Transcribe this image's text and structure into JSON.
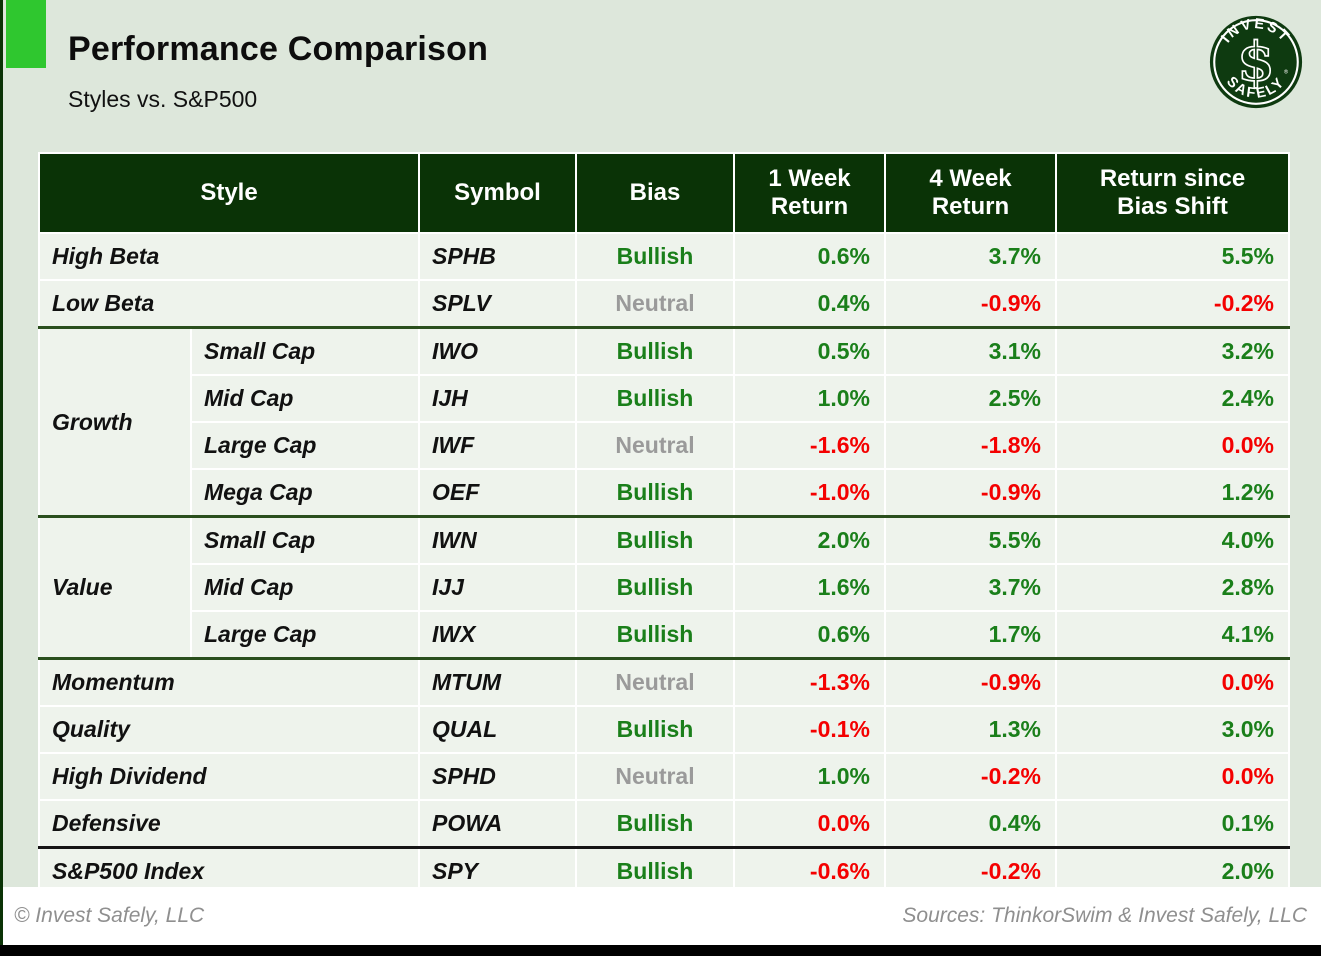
{
  "page": {
    "title": "Performance Comparison",
    "subtitle": "Styles vs. S&P500"
  },
  "logo": {
    "top_text": "INVEST",
    "bottom_text": "SAFELY",
    "monogram": "$",
    "trademark": "®"
  },
  "colors": {
    "page_bg": "#dde7db",
    "accent_green": "#2fc72f",
    "header_green": "#0a3306",
    "row_bg": "#eef3ec",
    "bullish_green": "#1a7f1a",
    "negative_red": "#f40000",
    "neutral_gray": "#9a9a9a",
    "group_divider_green": "#2a4f1d",
    "index_divider_black": "#151515",
    "footer_bg": "#ffffff",
    "footer_text": "#8f8f8f",
    "logo_green": "#0e3a10"
  },
  "table": {
    "header": {
      "style": "Style",
      "symbol": "Symbol",
      "bias": "Bias",
      "week1": "1 Week Return",
      "week4": "4 Week Return",
      "since": "Return since Bias Shift"
    },
    "rows": [
      {
        "style": "High Beta",
        "symbol": "SPHB",
        "bias": {
          "label": "Bullish",
          "tone": "bullish"
        },
        "returns": [
          {
            "value": "0.6%",
            "tone": "pos"
          },
          {
            "value": "3.7%",
            "tone": "pos"
          },
          {
            "value": "5.5%",
            "tone": "pos"
          }
        ],
        "divider_after": null
      },
      {
        "style": "Low Beta",
        "symbol": "SPLV",
        "bias": {
          "label": "Neutral",
          "tone": "neutral"
        },
        "returns": [
          {
            "value": "0.4%",
            "tone": "pos"
          },
          {
            "value": "-0.9%",
            "tone": "neg"
          },
          {
            "value": "-0.2%",
            "tone": "neg"
          }
        ],
        "divider_after": "group"
      },
      {
        "group": {
          "label": "Growth",
          "span": 4
        },
        "cap": "Small Cap",
        "symbol": "IWO",
        "bias": {
          "label": "Bullish",
          "tone": "bullish"
        },
        "returns": [
          {
            "value": "0.5%",
            "tone": "pos"
          },
          {
            "value": "3.1%",
            "tone": "pos"
          },
          {
            "value": "3.2%",
            "tone": "pos"
          }
        ],
        "divider_after": null
      },
      {
        "cap": "Mid Cap",
        "symbol": "IJH",
        "bias": {
          "label": "Bullish",
          "tone": "bullish"
        },
        "returns": [
          {
            "value": "1.0%",
            "tone": "pos"
          },
          {
            "value": "2.5%",
            "tone": "pos"
          },
          {
            "value": "2.4%",
            "tone": "pos"
          }
        ],
        "divider_after": null
      },
      {
        "cap": "Large Cap",
        "symbol": "IWF",
        "bias": {
          "label": "Neutral",
          "tone": "neutral"
        },
        "returns": [
          {
            "value": "-1.6%",
            "tone": "neg"
          },
          {
            "value": "-1.8%",
            "tone": "neg"
          },
          {
            "value": "0.0%",
            "tone": "neg"
          }
        ],
        "divider_after": null
      },
      {
        "cap": "Mega Cap",
        "symbol": "OEF",
        "bias": {
          "label": "Bullish",
          "tone": "bullish"
        },
        "returns": [
          {
            "value": "-1.0%",
            "tone": "neg"
          },
          {
            "value": "-0.9%",
            "tone": "neg"
          },
          {
            "value": "1.2%",
            "tone": "pos"
          }
        ],
        "divider_after": "group"
      },
      {
        "group": {
          "label": "Value",
          "span": 3
        },
        "cap": "Small Cap",
        "symbol": "IWN",
        "bias": {
          "label": "Bullish",
          "tone": "bullish"
        },
        "returns": [
          {
            "value": "2.0%",
            "tone": "pos"
          },
          {
            "value": "5.5%",
            "tone": "pos"
          },
          {
            "value": "4.0%",
            "tone": "pos"
          }
        ],
        "divider_after": null
      },
      {
        "cap": "Mid Cap",
        "symbol": "IJJ",
        "bias": {
          "label": "Bullish",
          "tone": "bullish"
        },
        "returns": [
          {
            "value": "1.6%",
            "tone": "pos"
          },
          {
            "value": "3.7%",
            "tone": "pos"
          },
          {
            "value": "2.8%",
            "tone": "pos"
          }
        ],
        "divider_after": null
      },
      {
        "cap": "Large Cap",
        "symbol": "IWX",
        "bias": {
          "label": "Bullish",
          "tone": "bullish"
        },
        "returns": [
          {
            "value": "0.6%",
            "tone": "pos"
          },
          {
            "value": "1.7%",
            "tone": "pos"
          },
          {
            "value": "4.1%",
            "tone": "pos"
          }
        ],
        "divider_after": "group"
      },
      {
        "style": "Momentum",
        "symbol": "MTUM",
        "bias": {
          "label": "Neutral",
          "tone": "neutral"
        },
        "returns": [
          {
            "value": "-1.3%",
            "tone": "neg"
          },
          {
            "value": "-0.9%",
            "tone": "neg"
          },
          {
            "value": "0.0%",
            "tone": "neg"
          }
        ],
        "divider_after": null
      },
      {
        "style": "Quality",
        "symbol": "QUAL",
        "bias": {
          "label": "Bullish",
          "tone": "bullish"
        },
        "returns": [
          {
            "value": "-0.1%",
            "tone": "neg"
          },
          {
            "value": "1.3%",
            "tone": "pos"
          },
          {
            "value": "3.0%",
            "tone": "pos"
          }
        ],
        "divider_after": null
      },
      {
        "style": "High Dividend",
        "symbol": "SPHD",
        "bias": {
          "label": "Neutral",
          "tone": "neutral"
        },
        "returns": [
          {
            "value": "1.0%",
            "tone": "pos"
          },
          {
            "value": "-0.2%",
            "tone": "neg"
          },
          {
            "value": "0.0%",
            "tone": "neg"
          }
        ],
        "divider_after": null
      },
      {
        "style": "Defensive",
        "symbol": "POWA",
        "bias": {
          "label": "Bullish",
          "tone": "bullish"
        },
        "returns": [
          {
            "value": "0.0%",
            "tone": "neg"
          },
          {
            "value": "0.4%",
            "tone": "pos"
          },
          {
            "value": "0.1%",
            "tone": "pos"
          }
        ],
        "divider_after": "index"
      },
      {
        "style": "S&P500 Index",
        "symbol": "SPY",
        "bias": {
          "label": "Bullish",
          "tone": "bullish"
        },
        "returns": [
          {
            "value": "-0.6%",
            "tone": "neg"
          },
          {
            "value": "-0.2%",
            "tone": "neg"
          },
          {
            "value": "2.0%",
            "tone": "pos"
          }
        ],
        "divider_after": null
      }
    ]
  },
  "chart_data": {
    "type": "table",
    "title": "Performance Comparison",
    "subtitle": "Styles vs. S&P500",
    "columns": [
      "Style",
      "Symbol",
      "Bias",
      "1 Week Return",
      "4 Week Return",
      "Return since Bias Shift"
    ],
    "rows": [
      [
        "High Beta",
        "SPHB",
        "Bullish",
        "0.6%",
        "3.7%",
        "5.5%"
      ],
      [
        "Low Beta",
        "SPLV",
        "Neutral",
        "0.4%",
        "-0.9%",
        "-0.2%"
      ],
      [
        "Growth - Small Cap",
        "IWO",
        "Bullish",
        "0.5%",
        "3.1%",
        "3.2%"
      ],
      [
        "Growth - Mid Cap",
        "IJH",
        "Bullish",
        "1.0%",
        "2.5%",
        "2.4%"
      ],
      [
        "Growth - Large Cap",
        "IWF",
        "Neutral",
        "-1.6%",
        "-1.8%",
        "0.0%"
      ],
      [
        "Growth - Mega Cap",
        "OEF",
        "Bullish",
        "-1.0%",
        "-0.9%",
        "1.2%"
      ],
      [
        "Value - Small Cap",
        "IWN",
        "Bullish",
        "2.0%",
        "5.5%",
        "4.0%"
      ],
      [
        "Value - Mid Cap",
        "IJJ",
        "Bullish",
        "1.6%",
        "3.7%",
        "2.8%"
      ],
      [
        "Value - Large Cap",
        "IWX",
        "Bullish",
        "0.6%",
        "1.7%",
        "4.1%"
      ],
      [
        "Momentum",
        "MTUM",
        "Neutral",
        "-1.3%",
        "-0.9%",
        "0.0%"
      ],
      [
        "Quality",
        "QUAL",
        "Bullish",
        "-0.1%",
        "1.3%",
        "3.0%"
      ],
      [
        "High Dividend",
        "SPHD",
        "Neutral",
        "1.0%",
        "-0.2%",
        "0.0%"
      ],
      [
        "Defensive",
        "POWA",
        "Bullish",
        "0.0%",
        "0.4%",
        "0.1%"
      ],
      [
        "S&P500 Index",
        "SPY",
        "Bullish",
        "-0.6%",
        "-0.2%",
        "2.0%"
      ]
    ]
  },
  "footer": {
    "copyright": "© Invest Safely, LLC",
    "sources": "Sources: ThinkorSwim & Invest Safely, LLC"
  }
}
